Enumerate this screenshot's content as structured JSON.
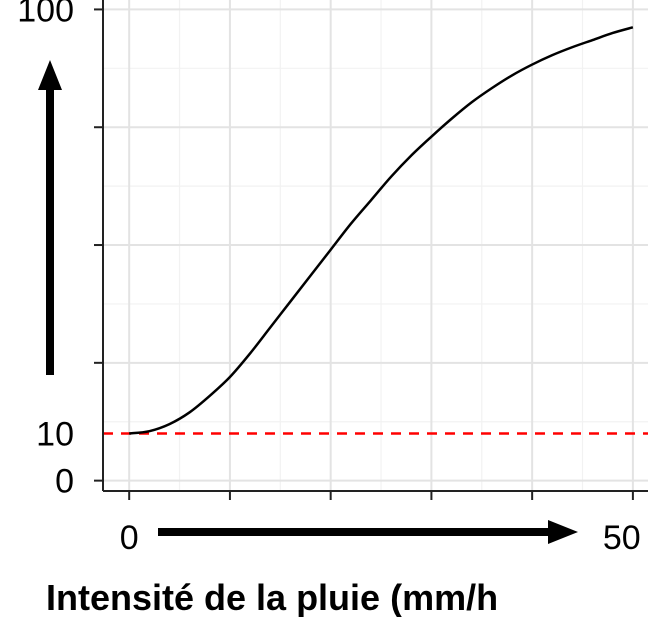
{
  "chart_data": {
    "type": "line",
    "title": "",
    "xlabel": "Intensité de la pluie (mm/h",
    "ylabel": "",
    "xlim": [
      -2.6,
      51.5
    ],
    "ylim": [
      -2.2,
      102
    ],
    "x_tick_values": [
      0,
      10,
      20,
      30,
      40,
      50
    ],
    "y_tick_values": [
      0,
      25,
      50,
      75,
      100
    ],
    "x_tick_labels": [
      {
        "value": 0,
        "label": "0"
      },
      {
        "value": 50,
        "label": "50"
      }
    ],
    "y_tick_labels": [
      {
        "value": 100,
        "label": "100"
      },
      {
        "value": 10,
        "label": "10"
      },
      {
        "value": 0,
        "label": "0"
      }
    ],
    "grid": true,
    "reference_line": {
      "y": 10,
      "style": "dashed",
      "color": "#ff0000"
    },
    "series": [
      {
        "color": "#000000",
        "x": [
          0,
          2,
          4,
          6,
          8,
          10,
          12,
          14,
          16,
          18,
          20,
          22,
          24,
          26,
          28,
          30,
          32,
          34,
          36,
          38,
          40,
          42,
          44,
          46,
          48,
          50
        ],
        "y": [
          10,
          10.5,
          12,
          14.5,
          18,
          22,
          27,
          32.5,
          38,
          43.5,
          49,
          54.5,
          59.5,
          64.5,
          69,
          73,
          76.8,
          80.3,
          83.3,
          86,
          88.3,
          90.3,
          92,
          93.5,
          95,
          96.2
        ]
      }
    ],
    "axis_arrows": {
      "x": true,
      "y": true
    }
  }
}
